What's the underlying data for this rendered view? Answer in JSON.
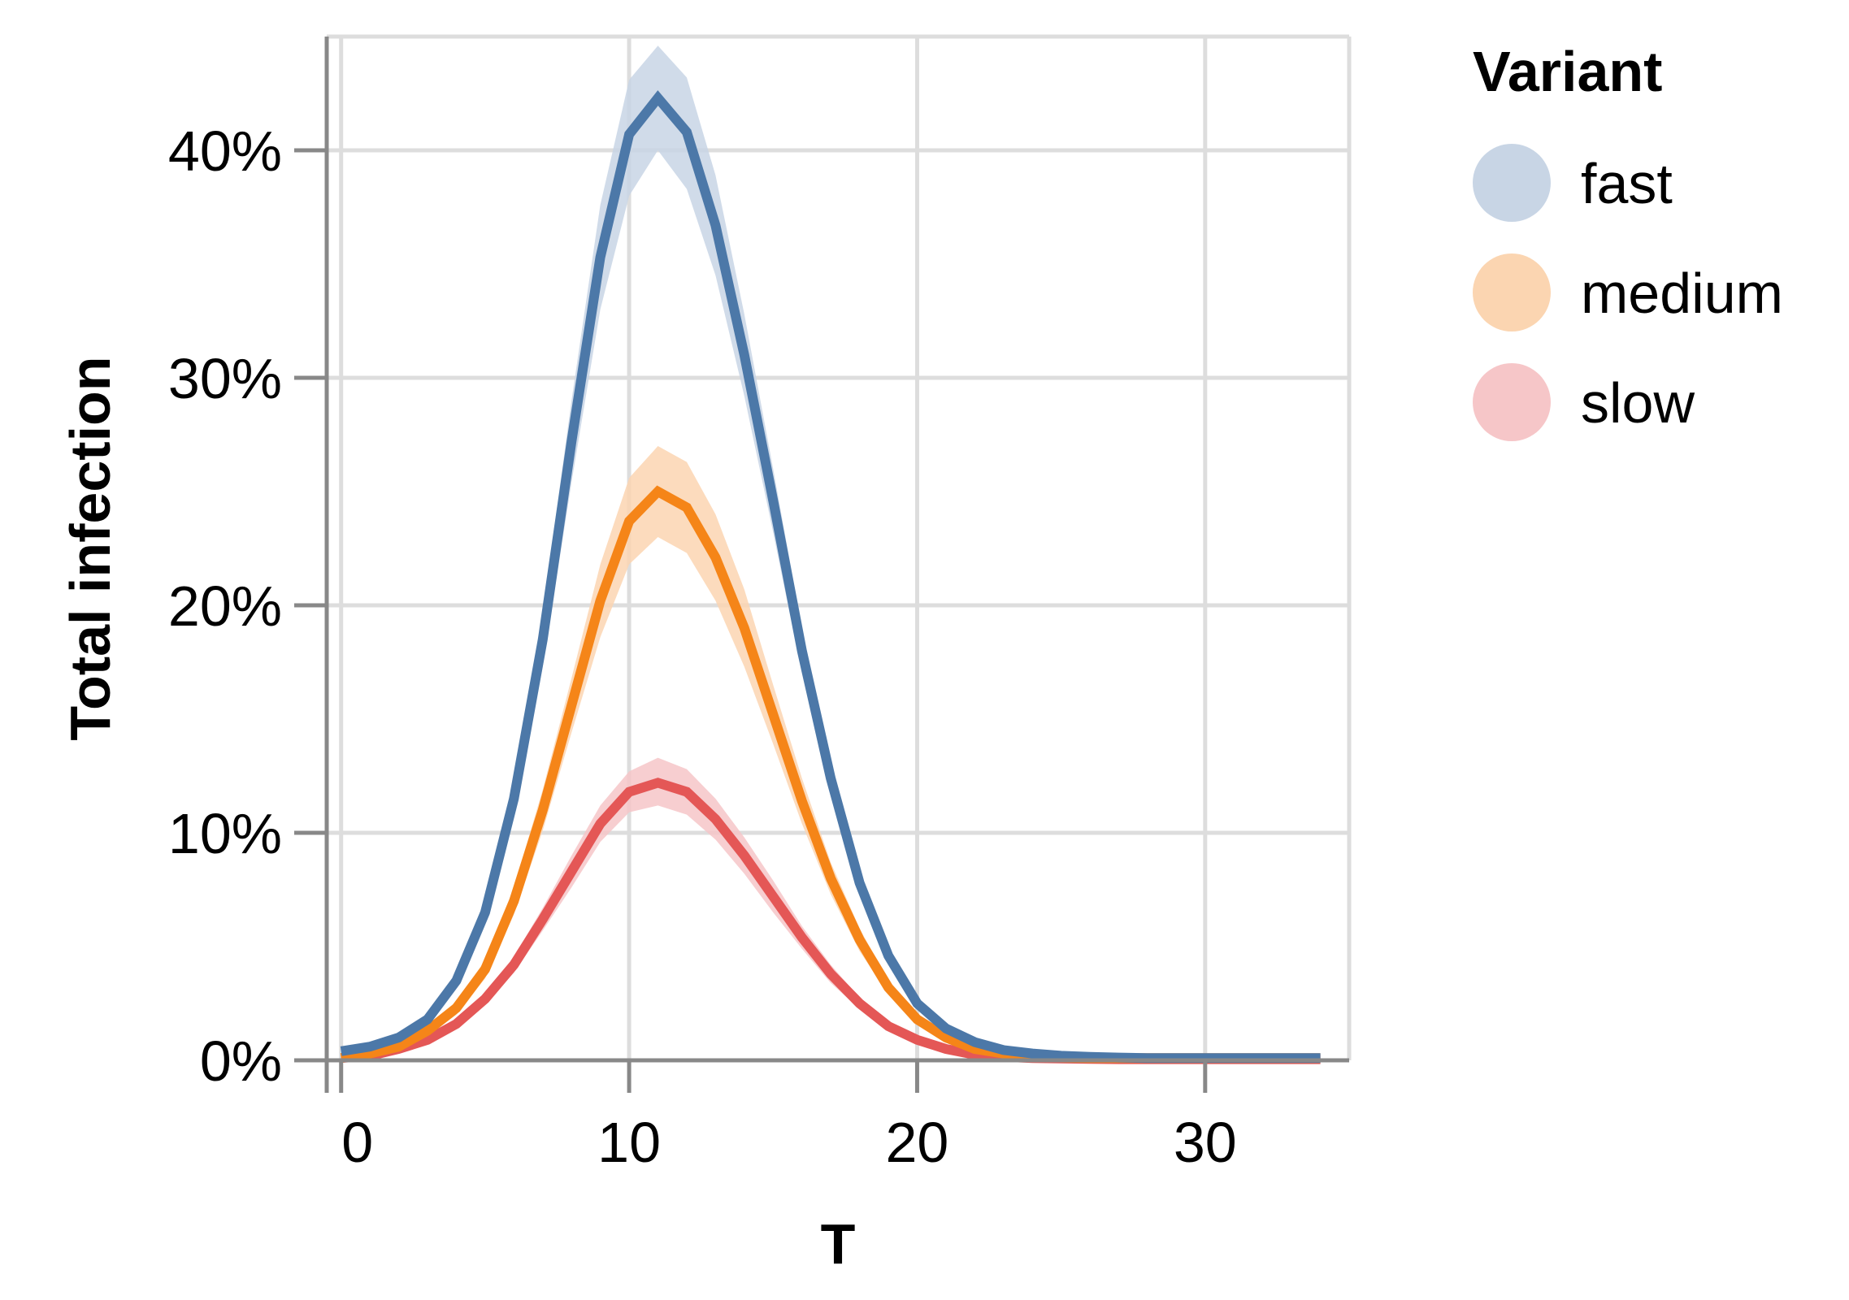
{
  "chart_data": {
    "type": "line",
    "xlabel": "T",
    "ylabel": "Total infection",
    "xlim": [
      -0.5,
      35
    ],
    "ylim": [
      0,
      45
    ],
    "x_ticks": [
      0,
      10,
      20,
      30
    ],
    "y_ticks": [
      0,
      10,
      20,
      30,
      40
    ],
    "x_tick_labels": [
      "0",
      "10",
      "20",
      "30"
    ],
    "y_tick_labels": [
      "0%",
      "10%",
      "20%",
      "30%",
      "40%"
    ],
    "grid": true,
    "legend": {
      "title": "Variant",
      "position": "right",
      "entries": [
        "fast",
        "medium",
        "slow"
      ]
    },
    "x": [
      0,
      1,
      2,
      3,
      4,
      5,
      6,
      7,
      8,
      9,
      10,
      11,
      12,
      13,
      14,
      15,
      16,
      17,
      18,
      19,
      20,
      21,
      22,
      23,
      24,
      25,
      26,
      27,
      28,
      29,
      30,
      31,
      32,
      33,
      34
    ],
    "series": [
      {
        "name": "fast",
        "color": "#4c78a8",
        "band_color": "#c8d5e5",
        "values": [
          0.4,
          0.6,
          1.0,
          1.8,
          3.5,
          6.5,
          11.5,
          18.5,
          27.2,
          35.3,
          40.7,
          42.3,
          40.8,
          36.7,
          31.0,
          24.6,
          18.0,
          12.4,
          7.8,
          4.6,
          2.5,
          1.4,
          0.8,
          0.45,
          0.3,
          0.2,
          0.15,
          0.12,
          0.1,
          0.1,
          0.1,
          0.1,
          0.1,
          0.1,
          0.1
        ],
        "lower": [
          0.3,
          0.5,
          0.9,
          1.6,
          3.2,
          6.0,
          10.7,
          17.3,
          25.4,
          33.0,
          38.0,
          40.0,
          38.3,
          34.5,
          29.2,
          23.2,
          17.0,
          11.7,
          7.3,
          4.3,
          2.3,
          1.3,
          0.7,
          0.4,
          0.25,
          0.18,
          0.13,
          0.1,
          0.1,
          0.1,
          0.1,
          0.1,
          0.1,
          0.1,
          0.1
        ],
        "upper": [
          0.5,
          0.7,
          1.1,
          2.0,
          3.8,
          7.0,
          12.3,
          19.7,
          29.0,
          37.6,
          43.1,
          44.6,
          43.2,
          38.9,
          32.8,
          26.0,
          19.0,
          13.1,
          8.3,
          4.9,
          2.7,
          1.5,
          0.9,
          0.5,
          0.35,
          0.22,
          0.17,
          0.14,
          0.12,
          0.12,
          0.12,
          0.12,
          0.12,
          0.12,
          0.12
        ]
      },
      {
        "name": "medium",
        "color": "#f58518",
        "band_color": "#fbd5b1",
        "values": [
          0.1,
          0.3,
          0.6,
          1.3,
          2.3,
          4.0,
          7.0,
          11.0,
          15.6,
          20.2,
          23.7,
          25.0,
          24.3,
          22.1,
          19.0,
          15.2,
          11.4,
          8.0,
          5.3,
          3.2,
          1.8,
          1.0,
          0.5,
          0.3,
          0.2,
          0.12,
          0.1,
          0.1,
          0.1,
          0.1,
          0.1,
          0.1,
          0.1,
          0.1,
          0.1
        ],
        "lower": [
          0.08,
          0.25,
          0.5,
          1.1,
          2.0,
          3.6,
          6.4,
          10.1,
          14.4,
          18.6,
          21.8,
          23.0,
          22.3,
          20.2,
          17.3,
          13.9,
          10.4,
          7.3,
          4.8,
          2.9,
          1.6,
          0.9,
          0.45,
          0.27,
          0.18,
          0.11,
          0.09,
          0.09,
          0.09,
          0.09,
          0.09,
          0.09,
          0.09,
          0.09,
          0.09
        ],
        "upper": [
          0.12,
          0.35,
          0.7,
          1.5,
          2.6,
          4.4,
          7.6,
          11.9,
          16.8,
          21.8,
          25.6,
          27.0,
          26.3,
          24.0,
          20.7,
          16.5,
          12.4,
          8.7,
          5.8,
          3.5,
          2.0,
          1.1,
          0.55,
          0.33,
          0.22,
          0.13,
          0.11,
          0.11,
          0.11,
          0.11,
          0.11,
          0.11,
          0.11,
          0.11,
          0.11
        ]
      },
      {
        "name": "slow",
        "color": "#e45756",
        "band_color": "#f6c6c8",
        "values": [
          0.1,
          0.2,
          0.5,
          0.9,
          1.6,
          2.7,
          4.2,
          6.2,
          8.3,
          10.4,
          11.8,
          12.2,
          11.8,
          10.6,
          9.0,
          7.2,
          5.4,
          3.8,
          2.5,
          1.5,
          0.9,
          0.5,
          0.25,
          0.15,
          0.1,
          0.08,
          0.06,
          0.05,
          0.05,
          0.05,
          0.05,
          0.05,
          0.05,
          0.05,
          0.05
        ],
        "lower": [
          0.08,
          0.17,
          0.42,
          0.8,
          1.45,
          2.45,
          3.85,
          5.7,
          7.6,
          9.6,
          10.9,
          11.2,
          10.8,
          9.7,
          8.2,
          6.5,
          4.9,
          3.4,
          2.25,
          1.35,
          0.8,
          0.45,
          0.22,
          0.13,
          0.09,
          0.07,
          0.05,
          0.04,
          0.04,
          0.04,
          0.04,
          0.04,
          0.04,
          0.04,
          0.04
        ],
        "upper": [
          0.12,
          0.23,
          0.58,
          1.0,
          1.75,
          2.95,
          4.55,
          6.7,
          9.0,
          11.2,
          12.7,
          13.3,
          12.8,
          11.5,
          9.8,
          7.9,
          5.9,
          4.2,
          2.75,
          1.65,
          1.0,
          0.55,
          0.28,
          0.17,
          0.11,
          0.09,
          0.07,
          0.06,
          0.06,
          0.06,
          0.06,
          0.06,
          0.06,
          0.06,
          0.06
        ]
      }
    ]
  }
}
